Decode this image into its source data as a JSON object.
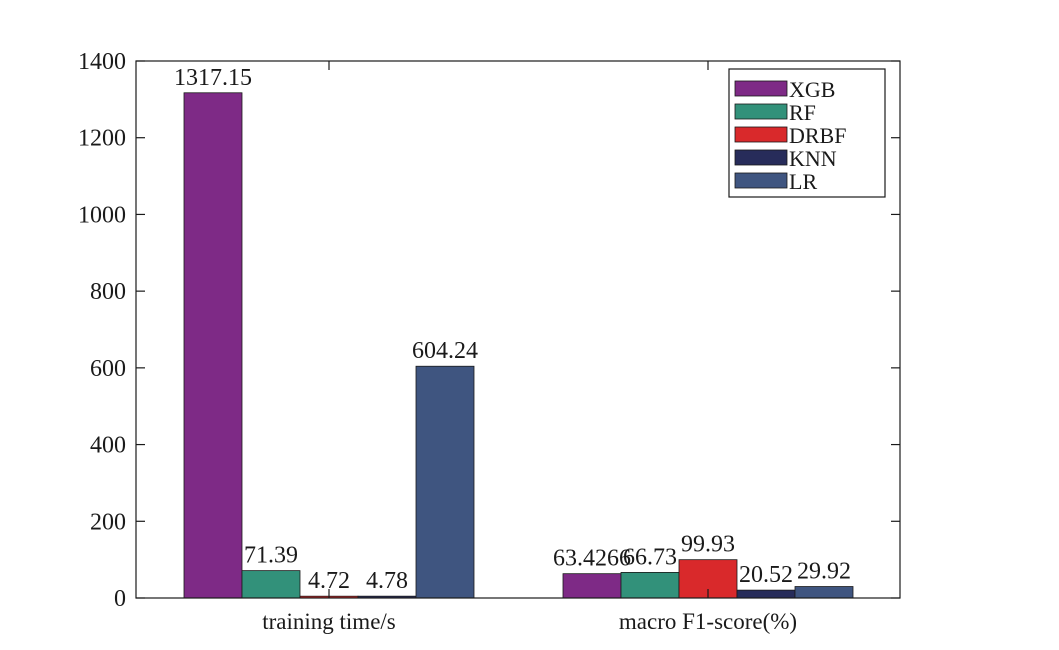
{
  "chart_data": {
    "type": "bar",
    "categories": [
      "training time/s",
      "macro F1-score(%)"
    ],
    "series": [
      {
        "name": "XGB",
        "color": "#7e2a86",
        "values": [
          1317.15,
          63.4266
        ],
        "labels": [
          "1317.15",
          "63.4266"
        ]
      },
      {
        "name": "RF",
        "color": "#32917a",
        "values": [
          71.39,
          66.73
        ],
        "labels": [
          "71.39",
          "66.73"
        ]
      },
      {
        "name": "DRBF",
        "color": "#d9292b",
        "values": [
          4.72,
          99.93
        ],
        "labels": [
          "4.72",
          "99.93"
        ]
      },
      {
        "name": "KNN",
        "color": "#272c5a",
        "values": [
          4.78,
          20.52
        ],
        "labels": [
          "4.78",
          "20.52"
        ]
      },
      {
        "name": "LR",
        "color": "#3f5580",
        "values": [
          604.24,
          29.92
        ],
        "labels": [
          "604.24",
          "29.92"
        ]
      }
    ],
    "ylim": [
      0,
      1400
    ],
    "yticks": [
      0,
      200,
      400,
      600,
      800,
      1000,
      1200,
      1400
    ],
    "ytick_labels": [
      "0",
      "200",
      "400",
      "600",
      "800",
      "1000",
      "1200",
      "1400"
    ],
    "title": "",
    "xlabel": "",
    "ylabel": "",
    "legend_position": "top-right",
    "grid": false
  }
}
